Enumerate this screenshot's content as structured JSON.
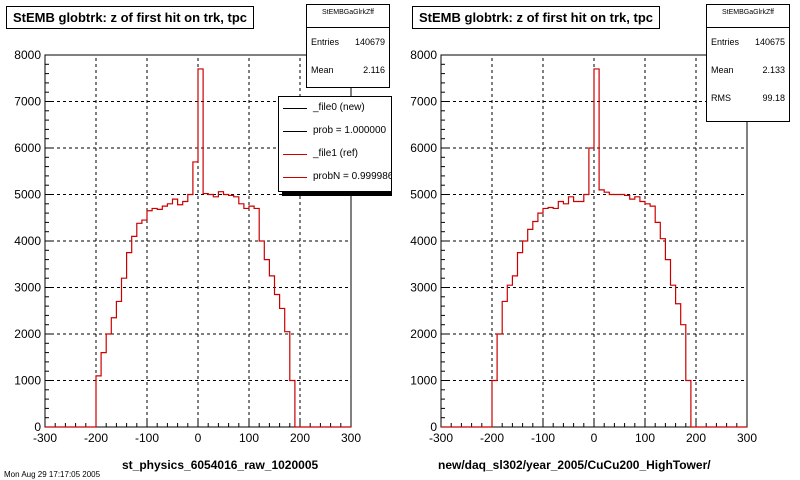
{
  "footer_text": "Mon Aug 29 17:17:05 2005",
  "chart_data": [
    {
      "type": "histogram",
      "title": "StEMB globtrk: z of first hit on trk, tpc",
      "xlabel": "st_physics_6054016_raw_1020005",
      "xlim": [
        -300,
        300
      ],
      "ylim": [
        0,
        8000
      ],
      "xticks": [
        -300,
        -200,
        -100,
        0,
        100,
        200,
        300
      ],
      "yticks": [
        0,
        1000,
        2000,
        3000,
        4000,
        5000,
        6000,
        7000,
        8000
      ],
      "grid": true,
      "bin_width": 10,
      "bin_edges_start": -200,
      "values": [
        1100,
        1600,
        2000,
        2350,
        2700,
        3200,
        3750,
        4100,
        4380,
        4450,
        4650,
        4700,
        4680,
        4750,
        4800,
        4900,
        4780,
        4850,
        5000,
        5700,
        7700,
        5020,
        5000,
        4950,
        5060,
        5000,
        4980,
        4950,
        4800,
        4700,
        4750,
        4700,
        4000,
        3600,
        3250,
        2850,
        2550,
        2050,
        1000
      ],
      "series": [
        {
          "name": "_file0 (new)",
          "color": "#000000"
        },
        {
          "name": "_file1 (ref)",
          "color": "#cc0000"
        }
      ],
      "stats": {
        "name": "StEMBGaGlrkZff",
        "entries_label": "Entries",
        "entries": "140679",
        "mean_label": "Mean",
        "mean": "2.116"
      },
      "legend": {
        "placement": "top-right",
        "entries": [
          {
            "label": "_file0 (new)",
            "color": "#000000"
          },
          {
            "label": "prob = 1.000000",
            "color": "#000000"
          },
          {
            "label": "_file1 (ref)",
            "color": "#cc0000"
          },
          {
            "label": "probN = 0.999986",
            "color": "#cc0000"
          }
        ]
      }
    },
    {
      "type": "histogram",
      "title": "StEMB globtrk: z of first hit on trk, tpc",
      "xlabel": "new/daq_sl302/year_2005/CuCu200_HighTower/",
      "xlim": [
        -300,
        300
      ],
      "ylim": [
        0,
        8000
      ],
      "xticks": [
        -300,
        -200,
        -100,
        0,
        100,
        200,
        300
      ],
      "yticks": [
        0,
        1000,
        2000,
        3000,
        4000,
        5000,
        6000,
        7000,
        8000
      ],
      "grid": true,
      "bin_width": 10,
      "bin_edges_start": -200,
      "values": [
        1000,
        2000,
        2700,
        3050,
        3250,
        3750,
        4000,
        4250,
        4420,
        4600,
        4700,
        4720,
        4700,
        4850,
        4800,
        4950,
        4850,
        4850,
        5000,
        6000,
        7700,
        5100,
        5050,
        5000,
        5000,
        5000,
        4980,
        4900,
        4950,
        4850,
        4800,
        4750,
        4400,
        4050,
        3600,
        3050,
        2650,
        2200,
        1000
      ],
      "series": [
        {
          "name": "",
          "color": "#cc0000"
        }
      ],
      "stats": {
        "name": "StEMBGaGlrkZff",
        "entries_label": "Entries",
        "entries": "140675",
        "mean_label": "Mean",
        "mean": "2.133",
        "rms_label": "RMS",
        "rms": "99.18"
      }
    }
  ]
}
